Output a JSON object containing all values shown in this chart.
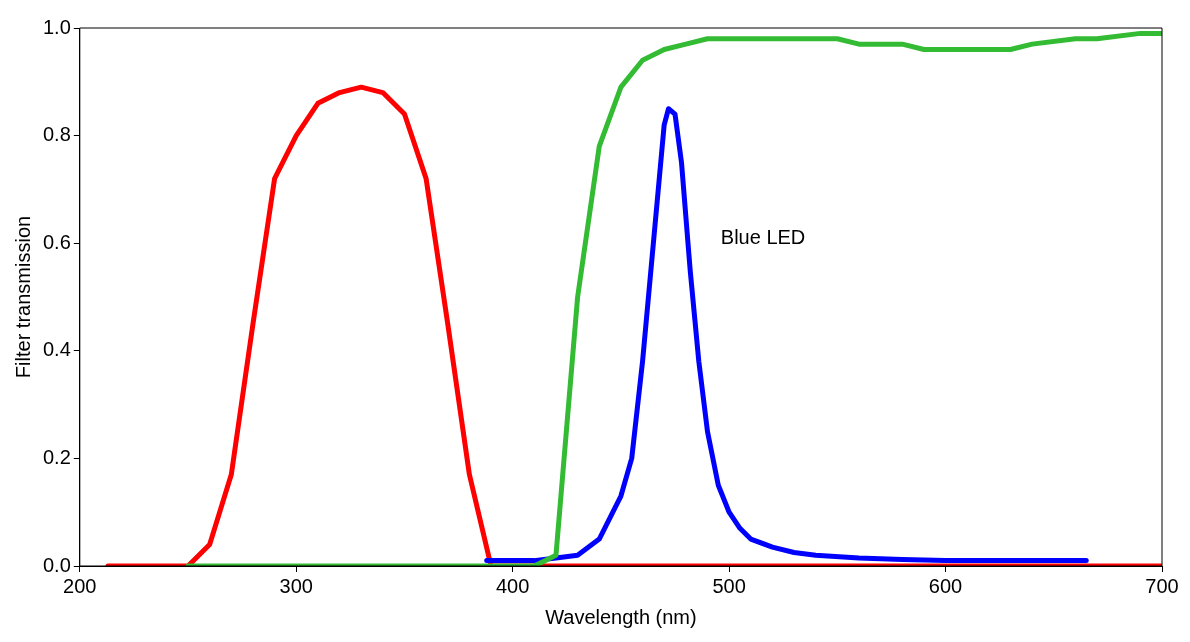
{
  "chart_data": {
    "type": "line",
    "xlabel": "Wavelength (nm)",
    "ylabel": "Filter transmission",
    "xlim": [
      200,
      700
    ],
    "xticks": [
      200,
      300,
      400,
      500,
      600,
      700
    ],
    "ylim": [
      0,
      1
    ],
    "yticks": [
      {
        "value": 0,
        "label": "0.0"
      },
      0.2,
      0.4,
      0.6,
      0.8,
      {
        "value": 1,
        "label": "1.0"
      }
    ],
    "grid": false,
    "legend": false,
    "marker": "none",
    "line_style": "solid",
    "series": [
      {
        "color": "#33bb33",
        "x": [
          250,
          410,
          420,
          430,
          440,
          450,
          460,
          470,
          480,
          490,
          550,
          560,
          580,
          590,
          630,
          640,
          660,
          670,
          690,
          700
        ],
        "values": [
          0,
          0,
          0.02,
          0.5,
          0.78,
          0.89,
          0.94,
          0.96,
          0.97,
          0.98,
          0.98,
          0.97,
          0.97,
          0.96,
          0.96,
          0.97,
          0.98,
          0.98,
          0.99,
          0.99
        ]
      },
      {
        "name": "Blue LED",
        "color": "#0000ff",
        "x": [
          388,
          400,
          410,
          420,
          430,
          440,
          450,
          455,
          460,
          465,
          470,
          472,
          475,
          478,
          482,
          486,
          490,
          495,
          500,
          505,
          510,
          520,
          530,
          540,
          560,
          580,
          600,
          630,
          665
        ],
        "values": [
          0.01,
          0.01,
          0.01,
          0.015,
          0.02,
          0.05,
          0.13,
          0.2,
          0.38,
          0.6,
          0.82,
          0.85,
          0.84,
          0.75,
          0.55,
          0.38,
          0.25,
          0.15,
          0.1,
          0.07,
          0.05,
          0.035,
          0.025,
          0.02,
          0.015,
          0.012,
          0.01,
          0.01,
          0.01
        ]
      },
      {
        "color": "#ff0000",
        "x": [
          213,
          250,
          260,
          270,
          280,
          290,
          300,
          310,
          320,
          330,
          340,
          350,
          360,
          370,
          380,
          390,
          700
        ],
        "values": [
          0,
          0,
          0.04,
          0.17,
          0.45,
          0.72,
          0.8,
          0.86,
          0.88,
          0.89,
          0.88,
          0.84,
          0.72,
          0.45,
          0.17,
          0,
          0
        ]
      }
    ]
  }
}
